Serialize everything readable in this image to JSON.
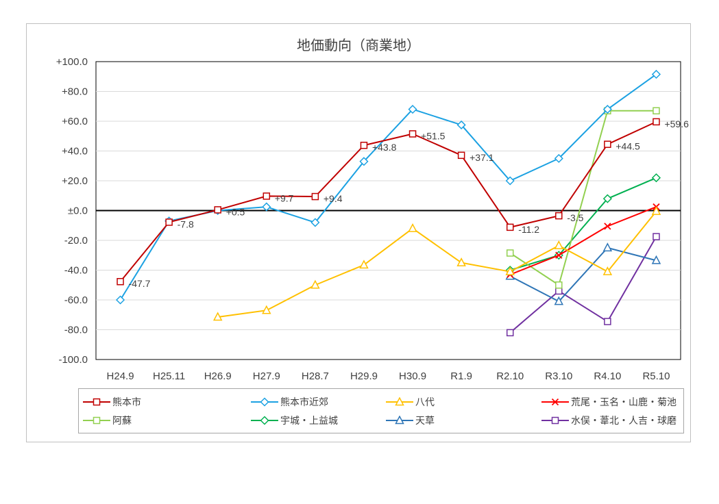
{
  "chart_data": {
    "type": "line",
    "title": "地価動向（商業地）",
    "xlabel": "",
    "ylabel": "",
    "categories": [
      "H24.9",
      "H25.11",
      "H26.9",
      "H27.9",
      "H28.7",
      "H29.9",
      "H30.9",
      "R1.9",
      "R2.10",
      "R3.10",
      "R4.10",
      "R5.10"
    ],
    "ylim": [
      -100,
      100
    ],
    "yticks": [
      "+100.0",
      "+80.0",
      "+60.0",
      "+40.0",
      "+20.0",
      "±0.0",
      "-20.0",
      "-40.0",
      "-60.0",
      "-80.0",
      "-100.0"
    ],
    "ytick_values": [
      100,
      80,
      60,
      40,
      20,
      0,
      -20,
      -40,
      -60,
      -80,
      -100
    ],
    "grid": true,
    "legend_position": "bottom",
    "series": [
      {
        "name": "熊本市",
        "color": "#c00000",
        "marker": "square",
        "values": [
          -47.7,
          -7.8,
          0.5,
          9.7,
          9.4,
          43.8,
          51.5,
          37.1,
          -11.2,
          -3.5,
          44.5,
          59.6
        ],
        "labels": [
          "-47.7",
          "-7.8",
          "+0.5",
          "+9.7",
          "+9.4",
          "+43.8",
          "+51.5",
          "+37.1",
          "-11.2",
          "-3.5",
          "+44.5",
          "+59.6"
        ]
      },
      {
        "name": "熊本市近郊",
        "color": "#1ba1e2",
        "marker": "diamond",
        "values": [
          -60,
          -7,
          0,
          2.5,
          -8,
          33,
          68,
          57.5,
          20,
          35,
          68,
          91.5
        ]
      },
      {
        "name": "八代",
        "color": "#ffc000",
        "marker": "triangle",
        "values": [
          null,
          null,
          -71.5,
          -67,
          -50,
          -36.5,
          -12,
          -35,
          -41,
          -23.5,
          -41,
          -0.5
        ]
      },
      {
        "name": "荒尾・玉名・山鹿・菊池",
        "color": "#ff0000",
        "marker": "x",
        "values": [
          null,
          null,
          null,
          null,
          null,
          null,
          null,
          null,
          -43,
          -30,
          -10.5,
          2.5
        ]
      },
      {
        "name": "阿蘇",
        "color": "#92d050",
        "marker": "square",
        "values": [
          null,
          null,
          null,
          null,
          null,
          null,
          null,
          null,
          -28.5,
          -50,
          67,
          67
        ]
      },
      {
        "name": "宇城・上益城",
        "color": "#00b050",
        "marker": "diamond",
        "values": [
          null,
          null,
          null,
          null,
          null,
          null,
          null,
          null,
          -40,
          -30,
          8,
          22
        ]
      },
      {
        "name": "天草",
        "color": "#2e75b6",
        "marker": "triangle",
        "values": [
          null,
          null,
          null,
          null,
          null,
          null,
          null,
          null,
          -44,
          -61,
          -25,
          -33.5
        ]
      },
      {
        "name": "水俣・葦北・人吉・球磨",
        "color": "#7030a0",
        "marker": "square",
        "values": [
          null,
          null,
          null,
          null,
          null,
          null,
          null,
          null,
          -82,
          -54,
          -74.5,
          -17.5
        ]
      }
    ]
  }
}
